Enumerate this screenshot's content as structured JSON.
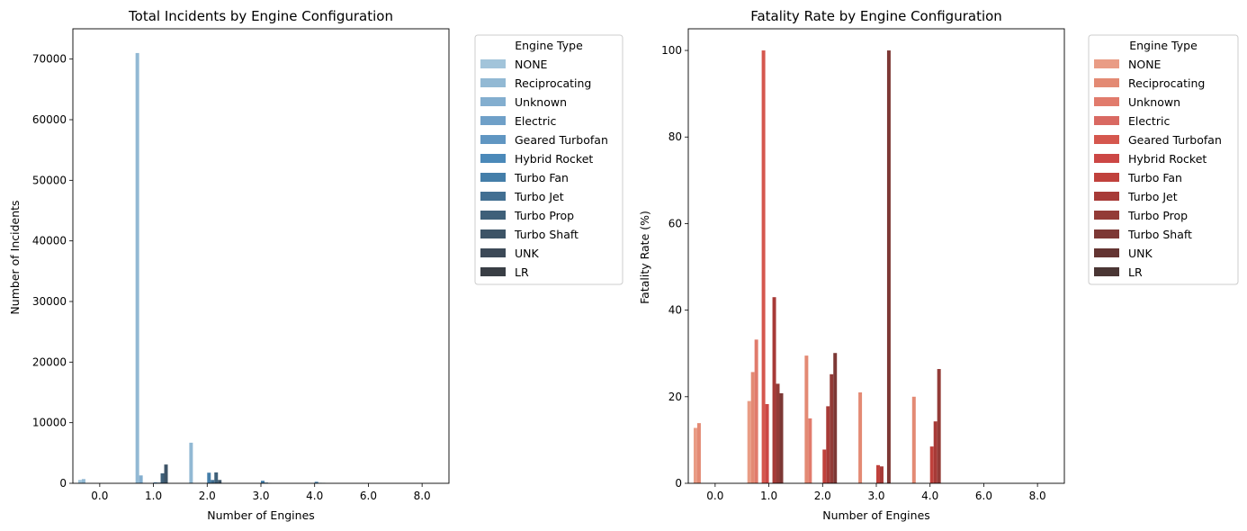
{
  "chart_data": [
    {
      "type": "bar",
      "title": "Total Incidents by Engine Configuration",
      "xlabel": "Number of Engines",
      "ylabel": "Number of Incidents",
      "categories": [
        "0.0",
        "1.0",
        "2.0",
        "3.0",
        "4.0",
        "6.0",
        "8.0"
      ],
      "ylim": [
        0,
        75000
      ],
      "yticks": [
        0,
        10000,
        20000,
        30000,
        40000,
        50000,
        60000,
        70000
      ],
      "yticklabels": [
        "0",
        "10000",
        "20000",
        "30000",
        "40000",
        "50000",
        "60000",
        "70000"
      ],
      "legend": {
        "title": "Engine Type",
        "placement": "outside-right"
      },
      "series": [
        {
          "name": "NONE",
          "color": "#a2c4da",
          "values": [
            560,
            0,
            0,
            0,
            0,
            0,
            0
          ]
        },
        {
          "name": "Reciprocating",
          "color": "#92b9d4",
          "values": [
            700,
            71000,
            6700,
            0,
            0,
            0,
            0
          ]
        },
        {
          "name": "Unknown",
          "color": "#83aecf",
          "values": [
            0,
            1300,
            0,
            0,
            0,
            0,
            0
          ]
        },
        {
          "name": "Electric",
          "color": "#6fa0c8",
          "values": [
            0,
            60,
            0,
            0,
            0,
            0,
            0
          ]
        },
        {
          "name": "Geared Turbofan",
          "color": "#6096c2",
          "values": [
            0,
            0,
            0,
            0,
            0,
            0,
            0
          ]
        },
        {
          "name": "Hybrid Rocket",
          "color": "#4b89b9",
          "values": [
            0,
            0,
            0,
            0,
            0,
            0,
            0
          ]
        },
        {
          "name": "Turbo Fan",
          "color": "#447ea9",
          "values": [
            0,
            150,
            1750,
            420,
            250,
            0,
            0
          ]
        },
        {
          "name": "Turbo Jet",
          "color": "#426f92",
          "values": [
            0,
            120,
            550,
            120,
            80,
            0,
            0
          ]
        },
        {
          "name": "Turbo Prop",
          "color": "#3f6079",
          "values": [
            0,
            1650,
            1800,
            40,
            60,
            0,
            0
          ]
        },
        {
          "name": "Turbo Shaft",
          "color": "#3d5467",
          "values": [
            0,
            3100,
            550,
            0,
            0,
            0,
            0
          ]
        },
        {
          "name": "UNK",
          "color": "#3c4957",
          "values": [
            0,
            0,
            0,
            0,
            0,
            0,
            0
          ]
        },
        {
          "name": "LR",
          "color": "#393e45",
          "values": [
            0,
            0,
            0,
            0,
            0,
            0,
            0
          ]
        }
      ]
    },
    {
      "type": "bar",
      "title": "Fatality Rate by Engine Configuration",
      "xlabel": "Number of Engines",
      "ylabel": "Fatality Rate (%)",
      "categories": [
        "0.0",
        "1.0",
        "2.0",
        "3.0",
        "4.0",
        "6.0",
        "8.0"
      ],
      "ylim": [
        0,
        105
      ],
      "yticks": [
        0,
        20,
        40,
        60,
        80,
        100
      ],
      "yticklabels": [
        "0",
        "20",
        "40",
        "60",
        "80",
        "100"
      ],
      "legend": {
        "title": "Engine Type",
        "placement": "outside-right"
      },
      "series": [
        {
          "name": "NONE",
          "color": "#e99c85",
          "values": [
            12.8,
            19,
            0,
            0,
            0,
            0,
            0
          ]
        },
        {
          "name": "Reciprocating",
          "color": "#e38a74",
          "values": [
            13.9,
            25.7,
            29.5,
            21,
            20,
            0,
            0
          ]
        },
        {
          "name": "Unknown",
          "color": "#e17b6c",
          "values": [
            0,
            33.2,
            15,
            0,
            0,
            0,
            0
          ]
        },
        {
          "name": "Electric",
          "color": "#d96962",
          "values": [
            0,
            0,
            0,
            0,
            0,
            0,
            0
          ]
        },
        {
          "name": "Geared Turbofan",
          "color": "#d5574e",
          "values": [
            0,
            100,
            0,
            0,
            0,
            0,
            0
          ]
        },
        {
          "name": "Hybrid Rocket",
          "color": "#cc4745",
          "values": [
            0,
            18.3,
            0,
            0,
            0,
            0,
            0
          ]
        },
        {
          "name": "Turbo Fan",
          "color": "#c0413c",
          "values": [
            0,
            0,
            7.8,
            4.2,
            8.5,
            0,
            0
          ]
        },
        {
          "name": "Turbo Jet",
          "color": "#a73a37",
          "values": [
            0,
            43,
            17.8,
            3.9,
            14.3,
            0,
            0
          ]
        },
        {
          "name": "Turbo Prop",
          "color": "#933b37",
          "values": [
            0,
            23,
            25.2,
            0,
            26.4,
            0,
            0
          ]
        },
        {
          "name": "Turbo Shaft",
          "color": "#7d3835",
          "values": [
            0,
            20.8,
            30.1,
            100,
            0,
            0,
            0
          ]
        },
        {
          "name": "UNK",
          "color": "#643432",
          "values": [
            0,
            0,
            0,
            0,
            0,
            0,
            0
          ]
        },
        {
          "name": "LR",
          "color": "#4a3634",
          "values": [
            0,
            0,
            0,
            0,
            0,
            0,
            0
          ]
        }
      ]
    }
  ]
}
